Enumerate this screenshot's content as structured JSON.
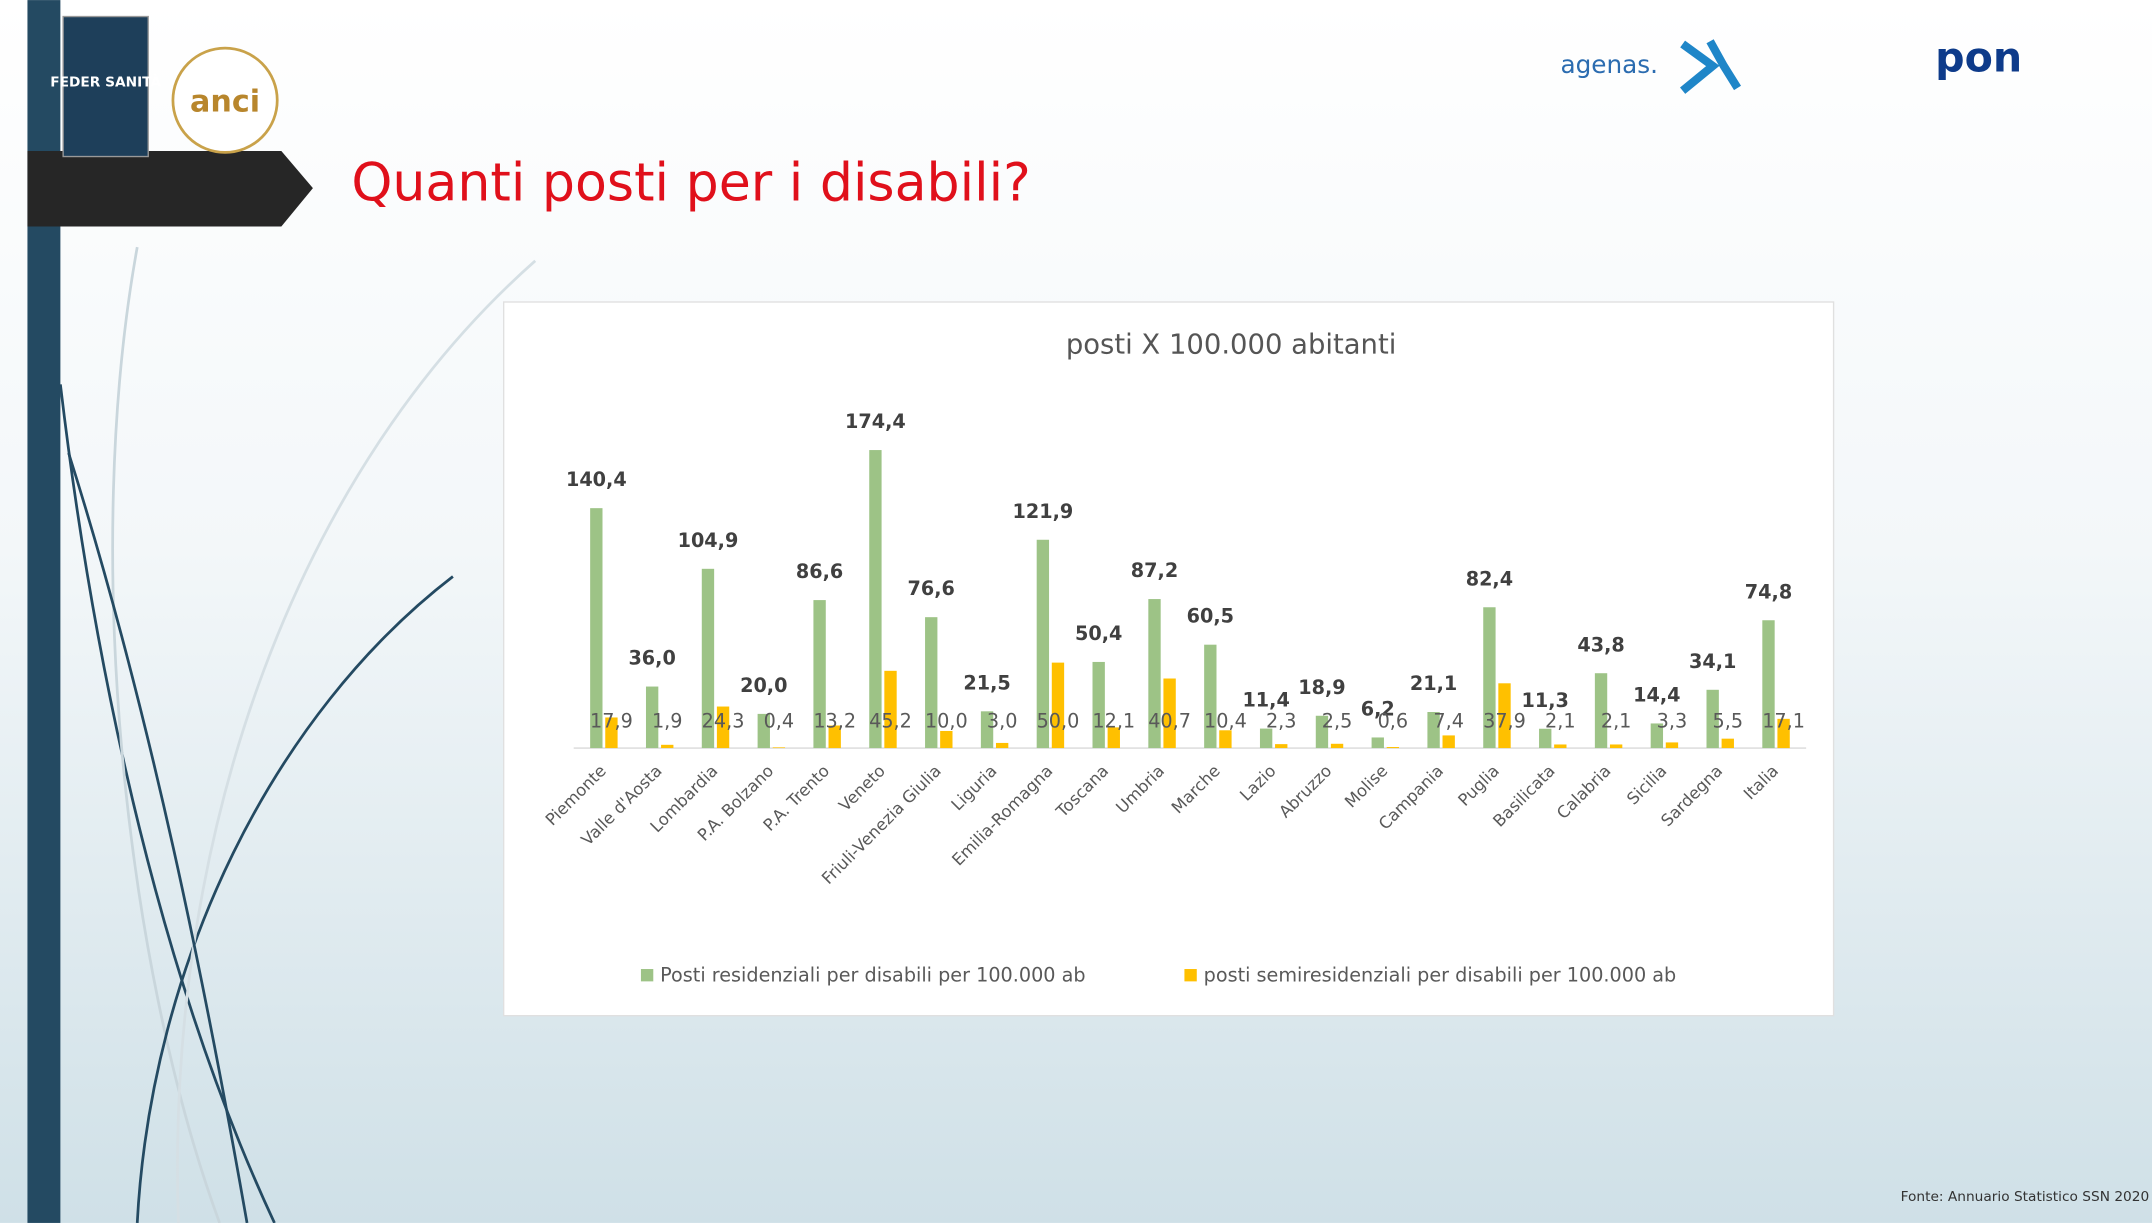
{
  "slide_title": "Quanti posti per i disabili?",
  "source": "Fonte: Annuario Statistico SSN 2020",
  "logos": {
    "federsanita": "FEDER SANITÀ",
    "anci": "anci",
    "agenas": "agenas.",
    "pon": "pon"
  },
  "chart_data": {
    "type": "bar",
    "title": "posti X 100.000 abitanti",
    "categories": [
      "Piemonte",
      "Valle d'Aosta",
      "Lombardia",
      "P.A. Bolzano",
      "P.A. Trento",
      "Veneto",
      "Friuli-Venezia Giulia",
      "Liguria",
      "Emilia-Romagna",
      "Toscana",
      "Umbria",
      "Marche",
      "Lazio",
      "Abruzzo",
      "Molise",
      "Campania",
      "Puglia",
      "Basilicata",
      "Calabria",
      "Sicilia",
      "Sardegna",
      "Italia"
    ],
    "series": [
      {
        "name": "Posti residenziali per disabili per 100.000 ab",
        "color": "#9dc386",
        "values": [
          140.4,
          36.0,
          104.9,
          20.0,
          86.6,
          174.4,
          76.6,
          21.5,
          121.9,
          50.4,
          87.2,
          60.5,
          11.4,
          18.9,
          6.2,
          21.1,
          82.4,
          11.3,
          43.8,
          14.4,
          34.1,
          74.8
        ],
        "value_labels": [
          "140,4",
          "36,0",
          "104,9",
          "20,0",
          "86,6",
          "174,4",
          "76,6",
          "21,5",
          "121,9",
          "50,4",
          "87,2",
          "60,5",
          "11,4",
          "18,9",
          "6,2",
          "21,1",
          "82,4",
          "11,3",
          "43,8",
          "14,4",
          "34,1",
          "74,8"
        ]
      },
      {
        "name": "posti semiresidenziali per disabili per 100.000 ab",
        "color": "#ffc000",
        "values": [
          17.9,
          1.9,
          24.3,
          0.4,
          13.2,
          45.2,
          10.0,
          3.0,
          50.0,
          12.1,
          40.7,
          10.4,
          2.3,
          2.5,
          0.6,
          7.4,
          37.9,
          2.1,
          2.1,
          3.3,
          5.5,
          17.1
        ],
        "value_labels": [
          "17,9",
          "1,9",
          "24,3",
          "0,4",
          "13,2",
          "45,2",
          "10,0",
          "3,0",
          "50,0",
          "12,1",
          "40,7",
          "10,4",
          "2,3",
          "2,5",
          "0,6",
          "7,4",
          "37,9",
          "2,1",
          "2,1",
          "3,3",
          "5,5",
          "17,1"
        ]
      }
    ],
    "ylim": [
      0,
      200
    ],
    "legend": "bottom"
  }
}
